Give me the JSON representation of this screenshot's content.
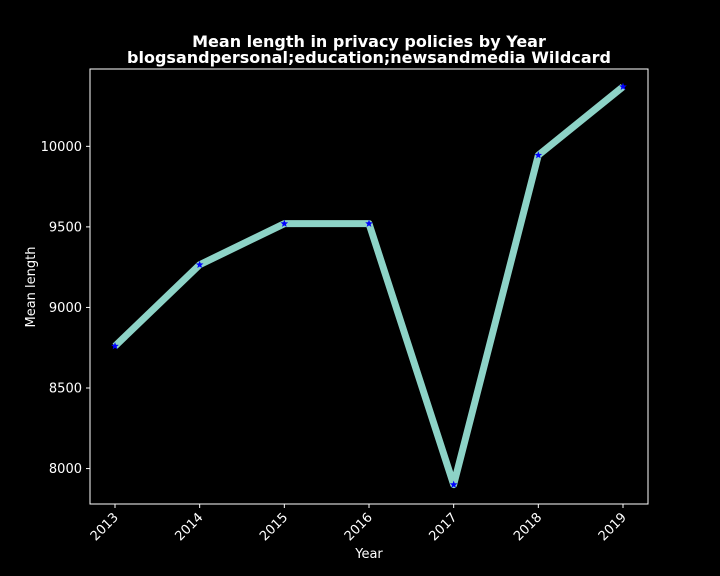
{
  "chart_data": {
    "type": "line",
    "title_line1": "Mean length in privacy policies by Year",
    "title_line2": "blogsandpersonal;education;newsandmedia Wildcard",
    "xlabel": "Year",
    "ylabel": "Mean length",
    "categories": [
      "2013",
      "2014",
      "2015",
      "2016",
      "2017",
      "2018",
      "2019"
    ],
    "values": [
      8760,
      9265,
      9520,
      9520,
      7900,
      9945,
      10370
    ],
    "yticks": [
      8000,
      8500,
      9000,
      9500,
      10000
    ],
    "ylim": [
      7780,
      10480
    ],
    "grid": false,
    "line_color": "#8dd3c7",
    "marker_color": "#0000ff",
    "background_color": "#000000",
    "axes_color": "#ffffff"
  }
}
